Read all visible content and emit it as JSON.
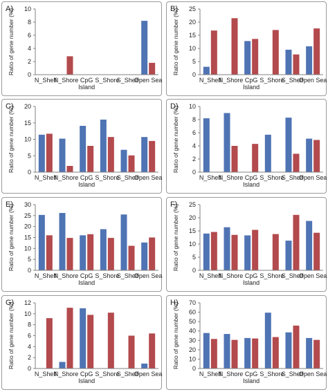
{
  "colors": {
    "series1": "#4f74b4",
    "series2": "#b34a4d",
    "axis": "#808080",
    "text": "#222222"
  },
  "chart_data": [
    {
      "id": "A",
      "panel_label": "A)",
      "type": "bar",
      "ylabel": "Ratio of gene number (%)",
      "ylim": [
        0,
        10
      ],
      "yticks": [
        0,
        2,
        4,
        6,
        8,
        10
      ],
      "categories": [
        [
          "N_Shelf"
        ],
        [
          "N_Shore"
        ],
        [
          "CpG",
          "Island"
        ],
        [
          "S_Shore"
        ],
        [
          "S_Shelf"
        ],
        [
          "Open Sea"
        ]
      ],
      "series": [
        {
          "values": [
            0,
            0,
            0,
            0,
            0,
            8.2
          ]
        },
        {
          "values": [
            0,
            2.8,
            0,
            0,
            0,
            1.8
          ]
        }
      ]
    },
    {
      "id": "B",
      "panel_label": "B)",
      "type": "bar",
      "ylabel": "Ratio of gene number (%)",
      "ylim": [
        0,
        25
      ],
      "yticks": [
        0,
        5,
        10,
        15,
        20,
        25
      ],
      "categories": [
        [
          "N_Shelf"
        ],
        [
          "N_Shore"
        ],
        [
          "CpG",
          "Island"
        ],
        [
          "S_Shore"
        ],
        [
          "S_Shelf"
        ],
        [
          "Open Sea"
        ]
      ],
      "series": [
        {
          "values": [
            3,
            0,
            12.8,
            0,
            9.5,
            10.8
          ]
        },
        {
          "values": [
            16.8,
            21.5,
            13.6,
            17,
            7.7,
            17.6
          ]
        }
      ]
    },
    {
      "id": "C",
      "panel_label": "C)",
      "type": "bar",
      "ylabel": "Ratio of gene number (%)",
      "ylim": [
        0,
        20
      ],
      "yticks": [
        0,
        5,
        10,
        15,
        20
      ],
      "categories": [
        [
          "N_Shelf"
        ],
        [
          "N_Shore"
        ],
        [
          "CpG",
          "Island"
        ],
        [
          "S_Shore"
        ],
        [
          "S_Shelf"
        ],
        [
          "Open Sea"
        ]
      ],
      "series": [
        {
          "values": [
            11.4,
            10.2,
            14.1,
            16,
            6.8,
            10.7
          ]
        },
        {
          "values": [
            11.7,
            1.9,
            8,
            10.7,
            5.1,
            9.5
          ]
        }
      ]
    },
    {
      "id": "D",
      "panel_label": "D)",
      "type": "bar",
      "ylabel": "Ratio of gene number (%)",
      "ylim": [
        0,
        10
      ],
      "yticks": [
        0,
        2,
        4,
        6,
        8,
        10
      ],
      "categories": [
        [
          "N_Shelf"
        ],
        [
          "N_Shore"
        ],
        [
          "CpG",
          "Island"
        ],
        [
          "S_Shore"
        ],
        [
          "S_Shelf"
        ],
        [
          "Open Sea"
        ]
      ],
      "series": [
        {
          "values": [
            8.2,
            9,
            0,
            5.7,
            8.3,
            5.1
          ]
        },
        {
          "values": [
            0,
            4,
            4.3,
            0,
            2.8,
            4.9
          ]
        }
      ]
    },
    {
      "id": "E",
      "panel_label": "E)",
      "type": "bar",
      "ylabel": "Ratio of gene number (%)",
      "ylim": [
        0,
        30
      ],
      "yticks": [
        0,
        5,
        10,
        15,
        20,
        25,
        30
      ],
      "categories": [
        [
          "N_Shelf"
        ],
        [
          "N_Shore"
        ],
        [
          "CpG",
          "Island"
        ],
        [
          "S_Shore"
        ],
        [
          "S_Shelf"
        ],
        [
          "Open Sea"
        ]
      ],
      "series": [
        {
          "values": [
            25.3,
            26.2,
            16,
            18.8,
            25.5,
            12.7
          ]
        },
        {
          "values": [
            16,
            14.8,
            16.5,
            14.8,
            11.2,
            15
          ]
        }
      ]
    },
    {
      "id": "F",
      "panel_label": "F)",
      "type": "bar",
      "ylabel": "Ratio of gene number (%)",
      "ylim": [
        0,
        25
      ],
      "yticks": [
        0,
        5,
        10,
        15,
        20,
        25
      ],
      "categories": [
        [
          "N_Shelf"
        ],
        [
          "N_Shore"
        ],
        [
          "CpG",
          "Island"
        ],
        [
          "S_Shore"
        ],
        [
          "S_Shelf"
        ],
        [
          "Open Sea"
        ]
      ],
      "series": [
        {
          "values": [
            14,
            16.4,
            13.3,
            0,
            11.3,
            18.8
          ]
        },
        {
          "values": [
            14.6,
            13.5,
            15.4,
            13.8,
            21.1,
            14.3
          ]
        }
      ]
    },
    {
      "id": "G",
      "panel_label": "G)",
      "type": "bar",
      "ylabel": "Ratio of gene number (%)",
      "ylim": [
        0,
        12
      ],
      "yticks": [
        0,
        2,
        4,
        6,
        8,
        10,
        12
      ],
      "categories": [
        [
          "N_Shelf"
        ],
        [
          "N_Shore"
        ],
        [
          "CpG",
          "Island"
        ],
        [
          "S_Shore"
        ],
        [
          "S_Shelf"
        ],
        [
          "Open Sea"
        ]
      ],
      "series": [
        {
          "values": [
            0,
            1.2,
            11,
            0,
            0,
            0.9
          ]
        },
        {
          "values": [
            9.2,
            11.1,
            9.8,
            10.2,
            6,
            6.4
          ]
        }
      ]
    },
    {
      "id": "H",
      "panel_label": "H)",
      "type": "bar",
      "ylabel": "Ratio of gene number (%)",
      "ylim": [
        0,
        70
      ],
      "yticks": [
        0,
        10,
        20,
        30,
        40,
        50,
        60,
        70
      ],
      "categories": [
        [
          "N_Shelf"
        ],
        [
          "N_Shore"
        ],
        [
          "CpG",
          "Island"
        ],
        [
          "S_Shore"
        ],
        [
          "S_Shelf"
        ],
        [
          "Open Sea"
        ]
      ],
      "series": [
        {
          "values": [
            37.8,
            36.8,
            32.5,
            59.5,
            38.5,
            32.5
          ]
        },
        {
          "values": [
            31.5,
            30.5,
            32,
            33.5,
            45.7,
            30.5
          ]
        }
      ]
    }
  ]
}
